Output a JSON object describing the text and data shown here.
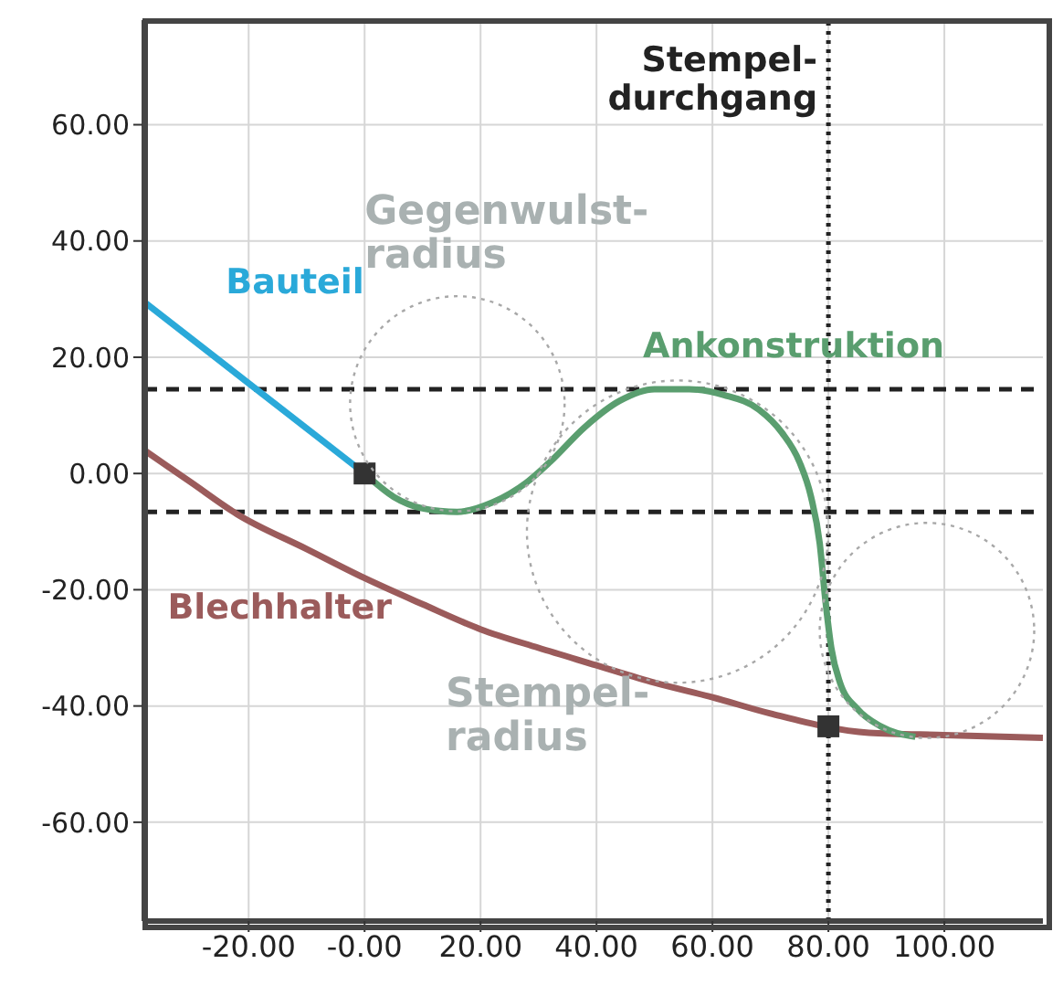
{
  "chart_data": {
    "type": "line",
    "xlim": [
      -38,
      117
    ],
    "ylim": [
      -77,
      78
    ],
    "xticks": [
      {
        "value": -20,
        "label": "-20.00"
      },
      {
        "value": 0,
        "label": "-0.00"
      },
      {
        "value": 20,
        "label": "20.00"
      },
      {
        "value": 40,
        "label": "40.00"
      },
      {
        "value": 60,
        "label": "60.00"
      },
      {
        "value": 80,
        "label": "80.00"
      },
      {
        "value": 100,
        "label": "100.00"
      }
    ],
    "yticks": [
      {
        "value": -60,
        "label": "-60.00"
      },
      {
        "value": -40,
        "label": "-40.00"
      },
      {
        "value": -20,
        "label": "-20.00"
      },
      {
        "value": 0,
        "label": "0.00"
      },
      {
        "value": 20,
        "label": "20.00"
      },
      {
        "value": 40,
        "label": "40.00"
      },
      {
        "value": 60,
        "label": "60.00"
      }
    ],
    "grid": true,
    "series": [
      {
        "name": "Bauteil",
        "color": "#2aa9d9",
        "x": [
          -38,
          0
        ],
        "values": [
          29.5,
          0
        ]
      },
      {
        "name": "Blechhalter",
        "color": "#9b5b5b",
        "x": [
          -38,
          -30,
          -22,
          -10,
          0,
          10,
          20,
          30,
          40,
          50,
          60,
          70,
          87,
          100,
          117
        ],
        "values": [
          4,
          -1.5,
          -7,
          -13,
          -18,
          -22.5,
          -26.8,
          -30,
          -33,
          -36,
          -38.5,
          -41.3,
          -44.6,
          -45,
          -45.5
        ]
      },
      {
        "name": "Ankonstruktion",
        "color": "#5a9e6f",
        "x": [
          0,
          5,
          10,
          16,
          22,
          28,
          32,
          38,
          44,
          50,
          56,
          62,
          68,
          72,
          75,
          77,
          78.5,
          79.5,
          80.5,
          82,
          85,
          89,
          95
        ],
        "values": [
          0,
          -4,
          -6,
          -6.6,
          -5,
          -1.5,
          2,
          8,
          12.5,
          14.5,
          14.5,
          13.5,
          11,
          7,
          2,
          -4,
          -12,
          -22,
          -30,
          -36,
          -40.5,
          -43.5,
          -45.3
        ]
      },
      {
        "type": "scatter",
        "color": "#333333",
        "marker": "square",
        "x": [
          0,
          80
        ],
        "values": [
          0,
          -43.5
        ]
      }
    ],
    "ref_lines": [
      {
        "axis": "y",
        "value": 14.5,
        "color": "#222222",
        "line_style": "dashed"
      },
      {
        "axis": "y",
        "value": -6.6,
        "color": "#222222",
        "line_style": "dashed"
      },
      {
        "axis": "x",
        "value": 80,
        "label": "Stempel-\ndurchgang",
        "color": "#222222",
        "line_style": "dotted"
      }
    ],
    "annotations": [
      "Gegenwulst-\nradius",
      "Stempel-\nradius"
    ]
  }
}
